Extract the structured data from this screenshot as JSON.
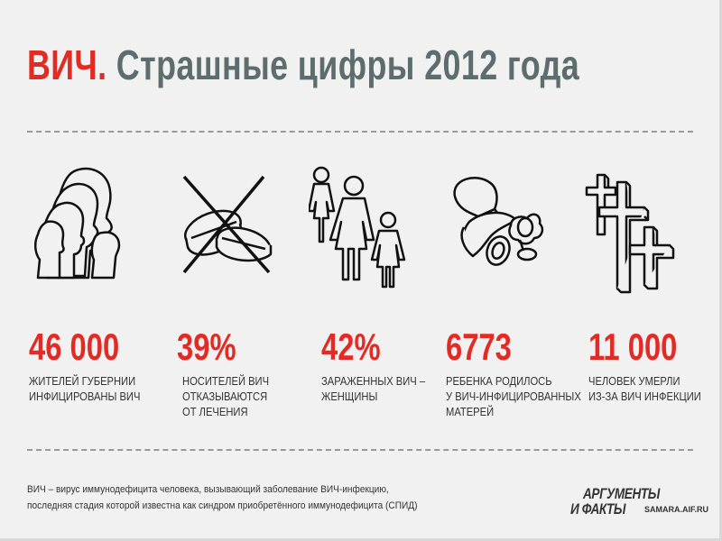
{
  "title": {
    "red": "ВИЧ.",
    "grey": "Страшные цифры 2012 года"
  },
  "stats": [
    {
      "value": "46 000",
      "caption": "ЖИТЕЛЕЙ ГУБЕРНИИ\nИНФИЦИРОВАНЫ ВИЧ",
      "icon": "people-heads-icon"
    },
    {
      "value": "39%",
      "caption": "НОСИТЕЛЕЙ ВИЧ\nОТКАЗЫВАЮТСЯ\nОТ ЛЕЧЕНИЯ",
      "icon": "crossed-pills-icon"
    },
    {
      "value": "42%",
      "caption": "ЗАРАЖЕННЫХ ВИЧ –\nЖЕНЩИНЫ",
      "icon": "women-figures-icon"
    },
    {
      "value": "6773",
      "caption": "РЕБЕНКА РОДИЛОСЬ\nУ ВИЧ-ИНФИЦИРОВАННЫХ\nМАТЕРЕЙ",
      "icon": "pacifiers-icon"
    },
    {
      "value": "11 000",
      "caption": "ЧЕЛОВЕК УМЕРЛИ\nИЗ-ЗА ВИЧ ИНФЕКЦИИ",
      "icon": "crosses-icon"
    }
  ],
  "footnote": "ВИЧ – вирус иммунодефицита человека, вызывающий заболевание ВИЧ-инфекцию,\nпоследняя стадия которой известна как синдром приобретённого иммунодефицита (СПИД)",
  "logo": {
    "line1": "АРГУМЕНТЫ",
    "line2": "И ФАКТЫ",
    "site": "SAMARA.AIF.RU"
  },
  "colors": {
    "accent": "#e32b25",
    "title_grey": "#5d6d6d",
    "background": "#f1f1f1"
  }
}
